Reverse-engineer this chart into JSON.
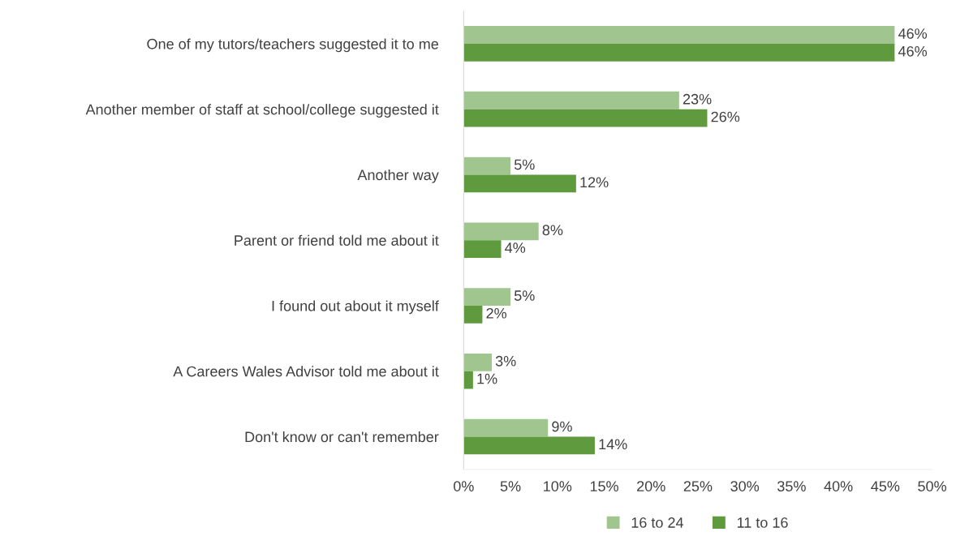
{
  "chart_data": {
    "type": "bar",
    "orientation": "horizontal",
    "categories": [
      "One of my tutors/teachers suggested it to me",
      "Another member of staff at school/college suggested it",
      "Another way",
      "Parent or friend told me about it",
      "I found out about it myself",
      "A Careers Wales Advisor told me about it",
      "Don't know or can't remember"
    ],
    "series": [
      {
        "name": "16 to 24",
        "color": "#a1c58e",
        "values": [
          46,
          23,
          5,
          8,
          5,
          3,
          9
        ],
        "value_labels": [
          "46%",
          "23%",
          "5%",
          "8%",
          "5%",
          "3%",
          "9%"
        ]
      },
      {
        "name": "11 to 16",
        "color": "#5f9b3e",
        "values": [
          46,
          26,
          12,
          4,
          2,
          1,
          14
        ],
        "value_labels": [
          "46%",
          "26%",
          "12%",
          "4%",
          "2%",
          "1%",
          "14%"
        ]
      }
    ],
    "xlim": [
      0,
      50
    ],
    "xticks": [
      {
        "value": 0,
        "label": "0%"
      },
      {
        "value": 5,
        "label": "5%"
      },
      {
        "value": 10,
        "label": "10%"
      },
      {
        "value": 15,
        "label": "15%"
      },
      {
        "value": 20,
        "label": "20%"
      },
      {
        "value": 25,
        "label": "25%"
      },
      {
        "value": 30,
        "label": "30%"
      },
      {
        "value": 35,
        "label": "35%"
      },
      {
        "value": 40,
        "label": "40%"
      },
      {
        "value": 45,
        "label": "45%"
      },
      {
        "value": 50,
        "label": "50%"
      }
    ],
    "grid": false,
    "legend": "bottom"
  }
}
